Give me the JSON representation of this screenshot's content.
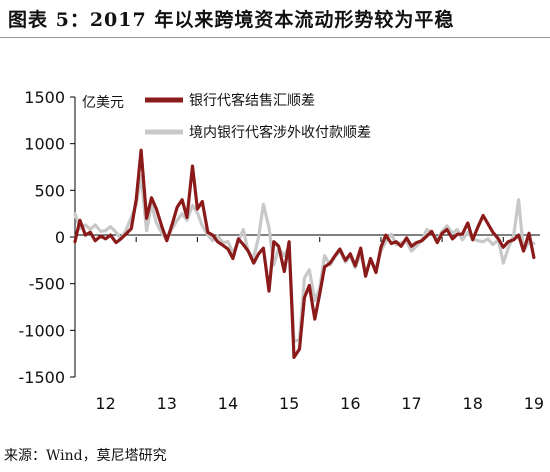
{
  "figure": {
    "title": "图表 5：2017 年以来跨境资本流动形势较为平稳",
    "source": "来源：Wind，莫尼塔研究"
  },
  "chart_data": {
    "type": "line",
    "ylabel": "亿美元",
    "ylim": [
      -1500,
      1500
    ],
    "yticks": [
      1500,
      1000,
      500,
      0,
      -500,
      -1000,
      -1500
    ],
    "xticklabels": [
      "12",
      "13",
      "14",
      "15",
      "16",
      "17",
      "18",
      "19"
    ],
    "xrange": [
      2012,
      2019.6
    ],
    "grid": false,
    "legend_position": "top",
    "colors": {
      "series_1": "#8b1a1a",
      "series_2": "#c8c8c8"
    },
    "series": [
      {
        "name": "银行代客结售汇顺差",
        "x": [
          2012.0,
          2012.08,
          2012.17,
          2012.25,
          2012.33,
          2012.42,
          2012.5,
          2012.58,
          2012.67,
          2012.75,
          2012.83,
          2012.92,
          2013.0,
          2013.08,
          2013.17,
          2013.25,
          2013.33,
          2013.42,
          2013.5,
          2013.58,
          2013.67,
          2013.75,
          2013.83,
          2013.92,
          2014.0,
          2014.08,
          2014.17,
          2014.25,
          2014.33,
          2014.42,
          2014.5,
          2014.58,
          2014.67,
          2014.75,
          2014.83,
          2014.92,
          2015.0,
          2015.08,
          2015.17,
          2015.25,
          2015.33,
          2015.42,
          2015.5,
          2015.58,
          2015.67,
          2015.75,
          2015.83,
          2015.92,
          2016.0,
          2016.08,
          2016.17,
          2016.25,
          2016.33,
          2016.42,
          2016.5,
          2016.58,
          2016.67,
          2016.75,
          2016.83,
          2016.92,
          2017.0,
          2017.08,
          2017.17,
          2017.25,
          2017.33,
          2017.42,
          2017.5,
          2017.58,
          2017.67,
          2017.75,
          2017.83,
          2017.92,
          2018.0,
          2018.08,
          2018.17,
          2018.25,
          2018.33,
          2018.42,
          2018.5,
          2018.58,
          2018.67,
          2018.75,
          2018.83,
          2018.92,
          2019.0,
          2019.08,
          2019.17,
          2019.25,
          2019.33,
          2019.42,
          2019.5
        ],
        "values": [
          -50,
          180,
          20,
          50,
          -40,
          10,
          -20,
          20,
          -60,
          -20,
          30,
          90,
          400,
          930,
          200,
          420,
          300,
          110,
          -40,
          120,
          320,
          400,
          210,
          760,
          300,
          380,
          50,
          20,
          -50,
          -90,
          -130,
          -230,
          -20,
          -80,
          -150,
          -280,
          -180,
          -120,
          -580,
          -50,
          -100,
          -370,
          -50,
          -1290,
          -1200,
          -650,
          -520,
          -880,
          -610,
          -320,
          -280,
          -200,
          -130,
          -250,
          -180,
          -310,
          -120,
          -420,
          -230,
          -380,
          -110,
          20,
          -70,
          -50,
          -100,
          -10,
          -100,
          -60,
          -40,
          10,
          60,
          -60,
          40,
          80,
          -20,
          30,
          30,
          150,
          -30,
          100,
          230,
          140,
          50,
          -20,
          -110,
          -50,
          -30,
          20,
          -150,
          40,
          -220
        ]
      },
      {
        "name": "境内银行代客涉外收付款顺差",
        "x": [
          2012.0,
          2012.08,
          2012.17,
          2012.25,
          2012.33,
          2012.42,
          2012.5,
          2012.58,
          2012.67,
          2012.75,
          2012.83,
          2012.92,
          2013.0,
          2013.08,
          2013.17,
          2013.25,
          2013.33,
          2013.42,
          2013.5,
          2013.58,
          2013.67,
          2013.75,
          2013.83,
          2013.92,
          2014.0,
          2014.08,
          2014.17,
          2014.25,
          2014.33,
          2014.42,
          2014.5,
          2014.58,
          2014.67,
          2014.75,
          2014.83,
          2014.92,
          2015.0,
          2015.08,
          2015.17,
          2015.25,
          2015.33,
          2015.42,
          2015.5,
          2015.58,
          2015.67,
          2015.75,
          2015.83,
          2015.92,
          2016.0,
          2016.08,
          2016.17,
          2016.25,
          2016.33,
          2016.42,
          2016.5,
          2016.58,
          2016.67,
          2016.75,
          2016.83,
          2016.92,
          2017.0,
          2017.08,
          2017.17,
          2017.25,
          2017.33,
          2017.42,
          2017.5,
          2017.58,
          2017.67,
          2017.75,
          2017.83,
          2017.92,
          2018.0,
          2018.08,
          2018.17,
          2018.25,
          2018.33,
          2018.42,
          2018.5,
          2018.58,
          2018.67,
          2018.75,
          2018.83,
          2018.92,
          2019.0,
          2019.08,
          2019.17,
          2019.25,
          2019.33,
          2019.42,
          2019.5
        ],
        "values": [
          250,
          90,
          130,
          80,
          130,
          60,
          70,
          110,
          50,
          -20,
          70,
          210,
          350,
          650,
          70,
          350,
          150,
          40,
          -30,
          80,
          180,
          250,
          180,
          340,
          260,
          120,
          20,
          -40,
          10,
          -60,
          -50,
          -170,
          -50,
          80,
          -160,
          -220,
          0,
          350,
          100,
          -300,
          -120,
          -200,
          -100,
          -1120,
          -1100,
          -440,
          -350,
          -680,
          -550,
          -200,
          -300,
          -210,
          -150,
          -270,
          -200,
          -330,
          -180,
          -390,
          -250,
          -340,
          -150,
          -50,
          30,
          -80,
          -60,
          -50,
          -150,
          -100,
          -30,
          80,
          50,
          -30,
          60,
          120,
          40,
          80,
          -30,
          50,
          -20,
          -40,
          -50,
          -20,
          -80,
          -30,
          -280,
          -120,
          20,
          400,
          -150,
          -50,
          -70
        ]
      }
    ]
  }
}
